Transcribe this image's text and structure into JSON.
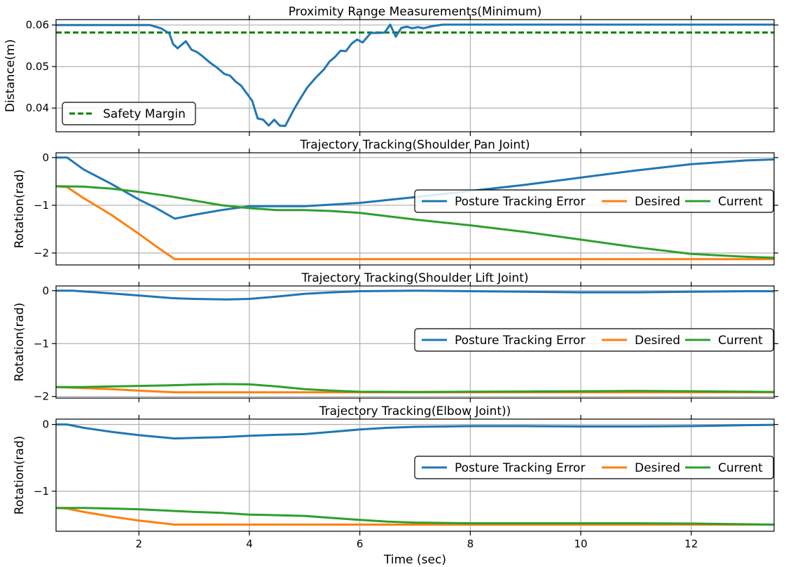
{
  "colors": {
    "posture_error": "#1f77b4",
    "desired": "#ff7f0e",
    "current": "#2ca02c",
    "safety": "#008000",
    "grid": "#b0b0b0"
  },
  "chart_data": [
    {
      "type": "line",
      "title": "Proximity Range Measurements(Minimum)",
      "xlabel": "",
      "ylabel": "Distance(m)",
      "xlim": [
        0.5,
        13.5
      ],
      "ylim": [
        0.0343,
        0.0613
      ],
      "xticks": [
        2,
        4,
        6,
        8,
        10,
        12
      ],
      "yticks": [
        0.04,
        0.05,
        0.06
      ],
      "ytick_labels": [
        "0.04",
        "0.05",
        "0.06"
      ],
      "grid": true,
      "legend": {
        "placement": "lower-left",
        "entries": [
          "Safety Margin"
        ]
      },
      "series": [
        {
          "name": "",
          "color_key": "posture_error",
          "x": [
            0.5,
            2.2,
            2.4,
            2.55,
            2.62,
            2.7,
            2.85,
            2.95,
            3.05,
            3.15,
            3.3,
            3.4,
            3.55,
            3.65,
            3.75,
            3.85,
            3.95,
            4.05,
            4.15,
            4.25,
            4.35,
            4.45,
            4.55,
            4.65,
            4.8,
            4.9,
            5.05,
            5.2,
            5.35,
            5.45,
            5.55,
            5.65,
            5.75,
            5.85,
            5.95,
            6.05,
            6.2,
            6.35,
            6.45,
            6.55,
            6.65,
            6.75,
            6.85,
            6.95,
            7.05,
            7.15,
            7.3,
            7.5,
            8.0,
            13.5
          ],
          "y": [
            0.06,
            0.06,
            0.0592,
            0.058,
            0.0554,
            0.0544,
            0.0561,
            0.0541,
            0.0535,
            0.0525,
            0.0508,
            0.0499,
            0.0482,
            0.0478,
            0.0464,
            0.0454,
            0.0436,
            0.0418,
            0.0375,
            0.0372,
            0.0358,
            0.0372,
            0.0358,
            0.0357,
            0.0395,
            0.0418,
            0.045,
            0.0473,
            0.0493,
            0.0512,
            0.0523,
            0.0538,
            0.0537,
            0.0555,
            0.0565,
            0.0558,
            0.0581,
            0.0581,
            0.0582,
            0.0601,
            0.0572,
            0.0593,
            0.0596,
            0.0592,
            0.0595,
            0.0592,
            0.0597,
            0.0601,
            0.0601,
            0.0601
          ]
        }
      ],
      "hlines": [
        {
          "name": "Safety Margin",
          "y": 0.0582,
          "style": "dashed",
          "color_key": "safety"
        }
      ]
    },
    {
      "type": "line",
      "title": "Trajectory Tracking(Shoulder Pan Joint)",
      "xlabel": "",
      "ylabel": "Rotation(rad)",
      "xlim": [
        0.5,
        13.5
      ],
      "ylim": [
        -2.25,
        0.1
      ],
      "xticks": [
        2,
        4,
        6,
        8,
        10,
        12
      ],
      "yticks": [
        -2,
        -1,
        0
      ],
      "ytick_labels": [
        "−2",
        "−1",
        "0"
      ],
      "grid": true,
      "legend": {
        "placement": "center-right",
        "entries": [
          "Posture Tracking Error",
          "Desired",
          "Current"
        ]
      },
      "series": [
        {
          "name": "Posture Tracking Error",
          "color_key": "posture_error",
          "x": [
            0.5,
            0.7,
            1.0,
            1.5,
            2.0,
            2.3,
            2.65,
            3.0,
            3.5,
            4.0,
            5.0,
            6.0,
            7.0,
            8.0,
            9.0,
            10.0,
            11.0,
            12.0,
            13.0,
            13.5
          ],
          "y": [
            0.0,
            0.0,
            -0.25,
            -0.55,
            -0.88,
            -1.05,
            -1.28,
            -1.2,
            -1.1,
            -1.02,
            -1.02,
            -0.95,
            -0.83,
            -0.7,
            -0.57,
            -0.42,
            -0.27,
            -0.14,
            -0.06,
            -0.04
          ]
        },
        {
          "name": "Desired",
          "color_key": "desired",
          "x": [
            0.5,
            0.7,
            1.0,
            1.5,
            2.0,
            2.3,
            2.65,
            13.5
          ],
          "y": [
            -0.6,
            -0.62,
            -0.85,
            -1.2,
            -1.6,
            -1.85,
            -2.13,
            -2.13
          ]
        },
        {
          "name": "Current",
          "color_key": "current",
          "x": [
            0.5,
            1.0,
            1.5,
            2.0,
            2.5,
            3.0,
            3.5,
            4.0,
            4.5,
            5.0,
            5.5,
            6.0,
            7.0,
            8.0,
            9.0,
            10.0,
            11.0,
            12.0,
            13.0,
            13.5
          ],
          "y": [
            -0.6,
            -0.61,
            -0.65,
            -0.72,
            -0.8,
            -0.9,
            -1.0,
            -1.06,
            -1.1,
            -1.1,
            -1.12,
            -1.16,
            -1.3,
            -1.42,
            -1.56,
            -1.72,
            -1.88,
            -2.02,
            -2.08,
            -2.1
          ]
        }
      ]
    },
    {
      "type": "line",
      "title": "Trajectory Tracking(Shoulder Lift Joint)",
      "xlabel": "",
      "ylabel": "Rotation(rad)",
      "xlim": [
        0.5,
        13.5
      ],
      "ylim": [
        -2.03,
        0.09
      ],
      "xticks": [
        2,
        4,
        6,
        8,
        10,
        12
      ],
      "yticks": [
        -2,
        -1,
        0
      ],
      "ytick_labels": [
        "−2",
        "−1",
        "0"
      ],
      "grid": true,
      "legend": {
        "placement": "center-right",
        "entries": [
          "Posture Tracking Error",
          "Desired",
          "Current"
        ]
      },
      "series": [
        {
          "name": "Posture Tracking Error",
          "color_key": "posture_error",
          "x": [
            0.5,
            0.8,
            1.5,
            2.0,
            2.6,
            3.0,
            3.6,
            4.0,
            4.5,
            5.0,
            5.5,
            6.0,
            7.0,
            8.0,
            9.0,
            10.0,
            11.0,
            12.0,
            13.0,
            13.5
          ],
          "y": [
            0.0,
            0.0,
            -0.05,
            -0.09,
            -0.14,
            -0.155,
            -0.165,
            -0.155,
            -0.11,
            -0.06,
            -0.03,
            -0.01,
            0.0,
            -0.01,
            -0.02,
            -0.03,
            -0.03,
            -0.02,
            -0.01,
            -0.01
          ]
        },
        {
          "name": "Desired",
          "color_key": "desired",
          "x": [
            0.5,
            1.0,
            1.5,
            2.0,
            2.65,
            13.5
          ],
          "y": [
            -1.82,
            -1.84,
            -1.86,
            -1.89,
            -1.92,
            -1.92
          ]
        },
        {
          "name": "Current",
          "color_key": "current",
          "x": [
            0.5,
            1.0,
            1.5,
            2.0,
            2.5,
            3.0,
            3.5,
            4.0,
            4.5,
            5.0,
            5.5,
            6.0,
            7.0,
            8.0,
            9.0,
            10.0,
            11.0,
            12.0,
            13.0,
            13.5
          ],
          "y": [
            -1.82,
            -1.82,
            -1.81,
            -1.8,
            -1.79,
            -1.775,
            -1.765,
            -1.77,
            -1.81,
            -1.86,
            -1.89,
            -1.91,
            -1.915,
            -1.91,
            -1.905,
            -1.9,
            -1.895,
            -1.9,
            -1.91,
            -1.915
          ]
        }
      ]
    },
    {
      "type": "line",
      "title": "Trajectory Tracking(Elbow Joint))",
      "xlabel": "Time (sec)",
      "ylabel": "Rotation(rad)",
      "xlim": [
        0.5,
        13.5
      ],
      "ylim": [
        -1.6,
        0.08
      ],
      "xticks": [
        2,
        4,
        6,
        8,
        10,
        12
      ],
      "yticks": [
        -1,
        0
      ],
      "ytick_labels": [
        "−1",
        "0"
      ],
      "xtick_labels": [
        "2",
        "4",
        "6",
        "8",
        "10",
        "12"
      ],
      "grid": true,
      "legend": {
        "placement": "center-right",
        "entries": [
          "Posture Tracking Error",
          "Desired",
          "Current"
        ]
      },
      "series": [
        {
          "name": "Posture Tracking Error",
          "color_key": "posture_error",
          "x": [
            0.5,
            0.7,
            1.0,
            1.5,
            2.0,
            2.65,
            3.0,
            3.5,
            4.0,
            4.5,
            5.0,
            5.5,
            6.0,
            6.5,
            7.0,
            8.0,
            9.0,
            10.0,
            11.0,
            12.0,
            13.0,
            13.5
          ],
          "y": [
            0.0,
            0.0,
            -0.05,
            -0.11,
            -0.16,
            -0.21,
            -0.2,
            -0.19,
            -0.17,
            -0.155,
            -0.145,
            -0.11,
            -0.075,
            -0.05,
            -0.035,
            -0.025,
            -0.025,
            -0.03,
            -0.03,
            -0.025,
            -0.01,
            -0.005
          ]
        },
        {
          "name": "Desired",
          "color_key": "desired",
          "x": [
            0.5,
            0.7,
            1.0,
            1.5,
            2.0,
            2.65,
            13.5
          ],
          "y": [
            -1.25,
            -1.26,
            -1.31,
            -1.38,
            -1.44,
            -1.5,
            -1.5
          ]
        },
        {
          "name": "Current",
          "color_key": "current",
          "x": [
            0.5,
            1.0,
            1.5,
            2.0,
            2.5,
            3.0,
            3.5,
            4.0,
            4.5,
            5.0,
            5.5,
            6.0,
            6.5,
            7.0,
            8.0,
            9.0,
            10.0,
            11.0,
            12.0,
            13.0,
            13.5
          ],
          "y": [
            -1.25,
            -1.25,
            -1.26,
            -1.27,
            -1.29,
            -1.31,
            -1.325,
            -1.35,
            -1.36,
            -1.37,
            -1.4,
            -1.43,
            -1.455,
            -1.47,
            -1.48,
            -1.48,
            -1.48,
            -1.48,
            -1.485,
            -1.495,
            -1.5
          ]
        }
      ]
    }
  ]
}
